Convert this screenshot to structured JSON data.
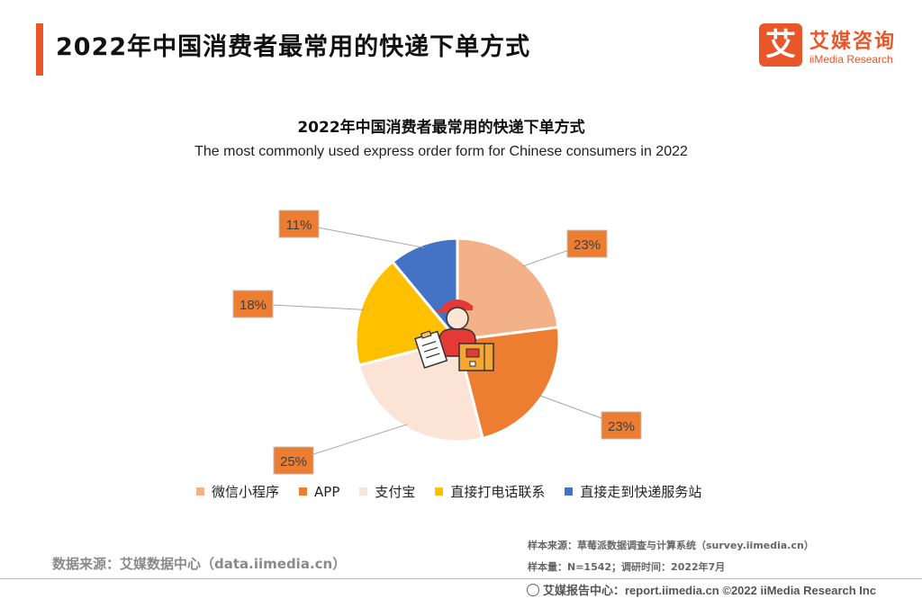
{
  "header": {
    "title": "2022年中国消费者最常用的快递下单方式",
    "logo_mark": "艾",
    "logo_cn": "艾媒咨询",
    "logo_en": "iiMedia Research"
  },
  "chart_data": {
    "type": "pie",
    "title": "2022年中国消费者最常用的快递下单方式",
    "subtitle": "The most commonly used express order form for Chinese consumers in 2022",
    "categories": [
      "微信小程序",
      "APP",
      "支付宝",
      "直接打电话联系",
      "直接走到快递服务站"
    ],
    "values": [
      23,
      23,
      25,
      18,
      11
    ],
    "labels": [
      "23%",
      "23%",
      "25%",
      "18%",
      "11%"
    ],
    "colors": [
      "#f2b186",
      "#ed7d31",
      "#fbe3d5",
      "#ffc000",
      "#4472c4"
    ],
    "label_color": "#ed7d31",
    "legend_position": "bottom"
  },
  "footer": {
    "source_left": "数据来源：艾媒数据中心（data.iimedia.cn）",
    "source_sample": "样本来源：草莓派数据调查与计算系统（survey.iimedia.cn）",
    "source_size": "样本量：N=1542；调研时间：2022年7月",
    "copyright": "艾媒报告中心：report.iimedia.cn   ©2022  iiMedia Research  Inc"
  }
}
